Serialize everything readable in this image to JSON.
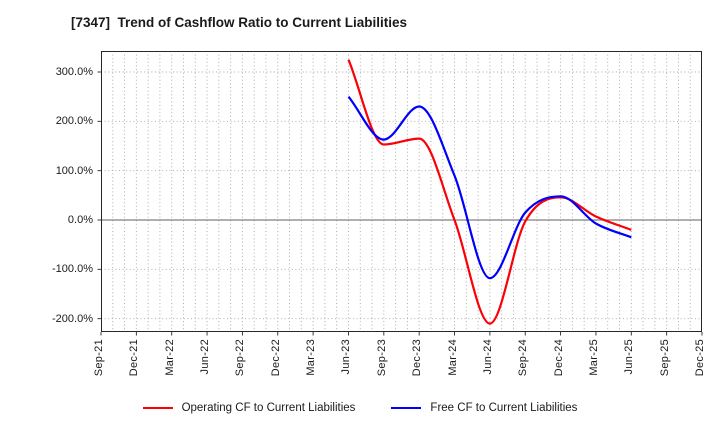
{
  "title": "[7347]  Trend of Cashflow Ratio to Current Liabilities",
  "colors": {
    "operating_series": "#fb0006",
    "free_series": "#0000fb",
    "grid": "#a6a6a6",
    "zero_line": "#808080",
    "plot_border": "#262626",
    "text": "#1a1a1a"
  },
  "chart_data": {
    "type": "line",
    "title": "[7347]  Trend of Cashflow Ratio to Current Liabilities",
    "xlabel": "",
    "ylabel": "",
    "unit": "%",
    "categories": [
      "Sep-21",
      "Dec-21",
      "Mar-22",
      "Jun-22",
      "Sep-22",
      "Dec-22",
      "Mar-23",
      "Jun-23",
      "Sep-23",
      "Dec-23",
      "Mar-24",
      "Jun-24",
      "Sep-24",
      "Dec-24",
      "Mar-25",
      "Jun-25",
      "Sep-25",
      "Dec-25"
    ],
    "series": [
      {
        "name": "Operating CF to Current Liabilities",
        "color": "#fb0006",
        "values": [
          null,
          null,
          null,
          null,
          null,
          null,
          null,
          325,
          153,
          165,
          0,
          -210,
          -3,
          46,
          7,
          -20,
          null,
          null
        ]
      },
      {
        "name": "Free CF to Current Liabilities",
        "color": "#0000fb",
        "values": [
          null,
          null,
          null,
          null,
          null,
          null,
          null,
          250,
          163,
          230,
          90,
          -118,
          15,
          48,
          -7,
          -35,
          null,
          null
        ]
      }
    ],
    "yticks": [
      {
        "value": 300,
        "label": "300.0%"
      },
      {
        "value": 200,
        "label": "200.0%"
      },
      {
        "value": 100,
        "label": "100.0%"
      },
      {
        "value": 0,
        "label": "0.0%"
      },
      {
        "value": -100,
        "label": "-100.0%"
      },
      {
        "value": -200,
        "label": "-200.0%"
      }
    ],
    "ylim": [
      -227,
      343
    ],
    "grid": "dotted gray; vertical minor gridlines monthly, horizontal gridlines every 100%, solid line at 0%",
    "legend_position": "bottom-center"
  }
}
